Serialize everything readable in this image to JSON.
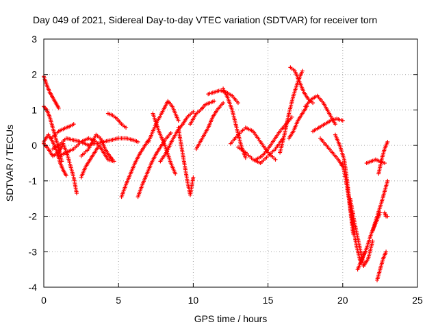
{
  "chart_data": {
    "type": "scatter",
    "title": "Day 049 of 2021, Sidereal Day-to-day VTEC variation (SDTVAR) for receiver torn",
    "xlabel": "GPS time / hours",
    "ylabel": "SDTVAR / TECUs",
    "xlim": [
      0,
      25
    ],
    "ylim": [
      -4,
      3
    ],
    "xticks": [
      0,
      5,
      10,
      15,
      20,
      25
    ],
    "yticks": [
      -4,
      -3,
      -2,
      -1,
      0,
      1,
      2,
      3
    ],
    "xtick_labels": [
      "0",
      "5",
      "10",
      "15",
      "20",
      "25"
    ],
    "ytick_labels": [
      "-4",
      "-3",
      "-2",
      "-1",
      "0",
      "1",
      "2",
      "3"
    ],
    "grid": true,
    "marker": "plus",
    "color": "#ff0000",
    "series": [
      {
        "name": "s1",
        "x": [
          0.0,
          0.2,
          0.4,
          0.6,
          0.8,
          1.0
        ],
        "y": [
          1.95,
          1.7,
          1.5,
          1.35,
          1.2,
          1.05
        ]
      },
      {
        "name": "s2",
        "x": [
          0.0,
          0.2,
          0.4,
          0.6,
          0.8,
          1.0,
          1.2
        ],
        "y": [
          1.1,
          1.0,
          0.8,
          0.5,
          0.2,
          -0.1,
          -0.45
        ]
      },
      {
        "name": "s3",
        "x": [
          0.0,
          0.3,
          0.6,
          0.9,
          1.1,
          1.3,
          1.5
        ],
        "y": [
          0.1,
          0.3,
          0.1,
          -0.2,
          -0.5,
          -0.7,
          -0.85
        ]
      },
      {
        "name": "s4",
        "x": [
          0.0,
          0.3,
          0.6,
          1.0,
          1.3,
          1.6,
          2.0,
          2.2
        ],
        "y": [
          0.05,
          -0.1,
          -0.3,
          -0.2,
          0.05,
          -0.3,
          -0.9,
          -1.35
        ]
      },
      {
        "name": "s5",
        "x": [
          0.5,
          1.0,
          1.5,
          1.8,
          2.0
        ],
        "y": [
          0.2,
          0.4,
          0.5,
          0.55,
          0.6
        ]
      },
      {
        "name": "s6",
        "x": [
          0.6,
          1.0,
          1.5,
          2.0,
          2.5,
          3.0
        ],
        "y": [
          -0.1,
          0.0,
          0.2,
          0.15,
          0.1,
          0.0
        ]
      },
      {
        "name": "s7",
        "x": [
          1.0,
          1.5,
          2.0,
          2.5,
          3.0,
          3.5
        ],
        "y": [
          -0.3,
          -0.2,
          -0.1,
          0.1,
          0.2,
          0.1
        ]
      },
      {
        "name": "s8",
        "x": [
          2.5,
          2.8,
          3.1,
          3.4,
          3.7,
          4.0,
          4.3,
          4.7
        ],
        "y": [
          -0.9,
          -0.6,
          -0.4,
          -0.2,
          0.0,
          -0.2,
          -0.4,
          -0.45
        ]
      },
      {
        "name": "s9",
        "x": [
          2.5,
          3.0,
          3.5,
          3.8,
          4.1,
          4.4,
          4.6
        ],
        "y": [
          -0.3,
          -0.1,
          0.3,
          0.2,
          -0.1,
          -0.3,
          -0.4
        ]
      },
      {
        "name": "s10",
        "x": [
          3.2,
          3.6,
          4.0,
          4.5,
          5.0,
          5.5,
          6.0,
          6.3
        ],
        "y": [
          0.05,
          0.05,
          0.1,
          0.15,
          0.2,
          0.2,
          0.15,
          0.1
        ]
      },
      {
        "name": "s11",
        "x": [
          4.3,
          4.6,
          4.9,
          5.2,
          5.5
        ],
        "y": [
          0.9,
          0.85,
          0.75,
          0.6,
          0.5
        ]
      },
      {
        "name": "s12",
        "x": [
          5.2,
          5.5,
          5.8,
          6.1,
          6.4,
          6.7,
          7.0
        ],
        "y": [
          -1.45,
          -1.1,
          -0.8,
          -0.5,
          -0.25,
          -0.05,
          0.15
        ]
      },
      {
        "name": "s13",
        "x": [
          6.3,
          6.6,
          6.9,
          7.2,
          7.5,
          7.8,
          8.1,
          8.5
        ],
        "y": [
          -1.45,
          -1.1,
          -0.8,
          -0.5,
          -0.25,
          -0.05,
          0.15,
          0.35
        ]
      },
      {
        "name": "s14",
        "x": [
          7.0,
          7.5,
          8.0,
          8.3,
          8.6,
          9.0
        ],
        "y": [
          0.1,
          0.6,
          1.0,
          1.25,
          1.1,
          0.7
        ]
      },
      {
        "name": "s15",
        "x": [
          7.3,
          7.7,
          8.1,
          8.5,
          8.8
        ],
        "y": [
          0.9,
          0.4,
          0.0,
          -0.5,
          -0.8
        ]
      },
      {
        "name": "s16",
        "x": [
          7.8,
          8.2,
          8.6,
          9.0,
          9.3,
          9.6,
          10.0
        ],
        "y": [
          -0.45,
          -0.2,
          0.15,
          0.45,
          0.6,
          0.8,
          0.95
        ]
      },
      {
        "name": "s17",
        "x": [
          9.0,
          9.2,
          9.4,
          9.6,
          9.8,
          10.0
        ],
        "y": [
          0.5,
          0.0,
          -0.5,
          -1.0,
          -1.4,
          -0.9
        ]
      },
      {
        "name": "s18",
        "x": [
          9.8,
          10.2,
          10.5,
          10.8,
          11.1,
          11.4
        ],
        "y": [
          0.6,
          0.9,
          1.0,
          1.15,
          1.2,
          1.25
        ]
      },
      {
        "name": "s19",
        "x": [
          10.2,
          10.6,
          11.0,
          11.3,
          11.6,
          12.0
        ],
        "y": [
          -0.1,
          0.2,
          0.5,
          0.8,
          1.0,
          1.2
        ]
      },
      {
        "name": "s20",
        "x": [
          11.0,
          11.4,
          11.8,
          12.2,
          12.6,
          13.0
        ],
        "y": [
          1.45,
          1.5,
          1.55,
          1.5,
          1.4,
          1.2
        ]
      },
      {
        "name": "s21",
        "x": [
          12.0,
          12.3,
          12.6,
          12.9,
          13.2,
          13.5
        ],
        "y": [
          1.6,
          1.35,
          1.0,
          0.5,
          0.0,
          -0.35
        ]
      },
      {
        "name": "s22",
        "x": [
          12.5,
          13.0,
          13.5,
          14.0,
          14.5,
          15.0,
          15.5
        ],
        "y": [
          0.05,
          0.3,
          0.5,
          0.4,
          0.1,
          -0.2,
          -0.4
        ]
      },
      {
        "name": "s23",
        "x": [
          13.0,
          13.5,
          14.0,
          14.5,
          15.0,
          15.5,
          16.0
        ],
        "y": [
          -0.05,
          -0.2,
          -0.4,
          -0.5,
          -0.3,
          -0.1,
          0.2
        ]
      },
      {
        "name": "s24",
        "x": [
          14.2,
          14.6,
          15.0,
          15.4,
          15.8,
          16.2,
          16.6
        ],
        "y": [
          -0.4,
          -0.3,
          -0.1,
          0.15,
          0.4,
          0.6,
          0.8
        ]
      },
      {
        "name": "s25",
        "x": [
          15.8,
          16.1,
          16.4,
          16.7,
          17.0,
          17.3
        ],
        "y": [
          -0.2,
          0.3,
          0.9,
          1.4,
          1.8,
          2.1
        ]
      },
      {
        "name": "s26",
        "x": [
          16.5,
          16.8,
          17.1,
          17.4,
          17.7,
          18.0
        ],
        "y": [
          2.2,
          2.1,
          1.8,
          1.5,
          1.3,
          1.2
        ]
      },
      {
        "name": "s27",
        "x": [
          16.4,
          16.7,
          17.0,
          17.3,
          17.6
        ],
        "y": [
          0.2,
          0.4,
          0.7,
          0.9,
          1.1
        ]
      },
      {
        "name": "s28",
        "x": [
          17.5,
          17.9,
          18.3,
          18.7,
          19.1,
          19.5
        ],
        "y": [
          1.1,
          1.3,
          1.4,
          1.2,
          0.9,
          0.6
        ]
      },
      {
        "name": "s29",
        "x": [
          18.0,
          18.4,
          18.8,
          19.2,
          19.6,
          20.0
        ],
        "y": [
          0.4,
          0.5,
          0.6,
          0.7,
          0.75,
          0.7
        ]
      },
      {
        "name": "s30",
        "x": [
          18.5,
          18.9,
          19.3,
          19.7,
          20.0
        ],
        "y": [
          0.2,
          0.0,
          -0.2,
          -0.4,
          -0.6
        ]
      },
      {
        "name": "s31",
        "x": [
          19.5,
          19.8,
          20.1,
          20.3,
          20.5,
          20.7
        ],
        "y": [
          0.3,
          0.0,
          -0.4,
          -1.0,
          -1.8,
          -2.5
        ]
      },
      {
        "name": "s32",
        "x": [
          20.0,
          20.3,
          20.6,
          20.9,
          21.2,
          21.5
        ],
        "y": [
          -0.5,
          -1.2,
          -2.0,
          -2.8,
          -3.3,
          -3.0
        ]
      },
      {
        "name": "s33",
        "x": [
          20.5,
          20.8,
          21.1,
          21.4,
          21.7,
          22.0
        ],
        "y": [
          -1.5,
          -2.2,
          -2.8,
          -3.4,
          -3.2,
          -2.7
        ]
      },
      {
        "name": "s34",
        "x": [
          21.0,
          21.3,
          21.6,
          21.9,
          22.2,
          22.5
        ],
        "y": [
          -3.5,
          -3.2,
          -2.9,
          -2.5,
          -2.2,
          -1.9
        ]
      },
      {
        "name": "s35",
        "x": [
          21.6,
          21.9,
          22.2,
          22.5,
          22.8
        ],
        "y": [
          -0.5,
          -0.45,
          -0.4,
          -0.45,
          -0.5
        ]
      },
      {
        "name": "s36",
        "x": [
          22.0,
          22.3,
          22.6,
          22.8,
          23.0
        ],
        "y": [
          -2.4,
          -2.0,
          -1.6,
          -1.3,
          -1.0
        ]
      },
      {
        "name": "s37",
        "x": [
          22.3,
          22.5,
          22.7,
          22.9
        ],
        "y": [
          -3.8,
          -3.5,
          -3.2,
          -3.0
        ]
      },
      {
        "name": "s38",
        "x": [
          22.4,
          22.6,
          22.8,
          23.0
        ],
        "y": [
          -0.8,
          -0.4,
          -0.1,
          0.1
        ]
      },
      {
        "name": "s39",
        "x": [
          22.8,
          22.9,
          23.0
        ],
        "y": [
          -1.9,
          -2.0,
          -2.0
        ]
      }
    ]
  }
}
